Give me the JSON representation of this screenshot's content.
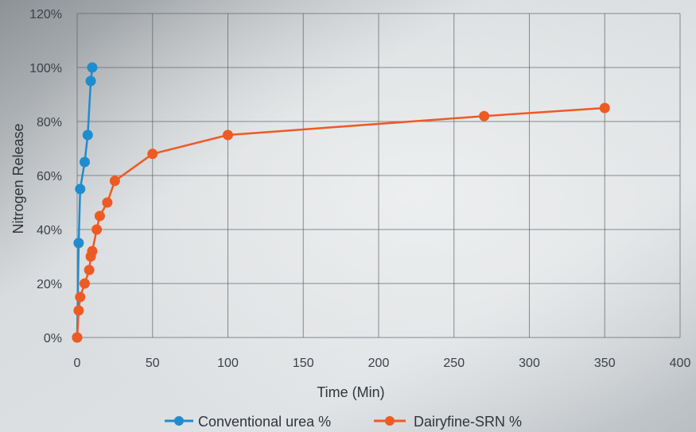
{
  "chart_data": {
    "type": "scatter",
    "title": "",
    "xlabel": "Time (Min)",
    "ylabel": "Nitrogen Release",
    "xlim": [
      0,
      400
    ],
    "ylim": [
      0,
      120
    ],
    "x_ticks": [
      "0",
      "50",
      "100",
      "150",
      "200",
      "250",
      "300",
      "350",
      "400"
    ],
    "y_ticks": [
      "0%",
      "20%",
      "40%",
      "60%",
      "80%",
      "100%",
      "120%"
    ],
    "grid": true,
    "legend_position": "bottom",
    "series": [
      {
        "name": "Conventional urea %",
        "color": "#1f8ccf",
        "points": [
          [
            0,
            0
          ],
          [
            1,
            35
          ],
          [
            2,
            55
          ],
          [
            5,
            65
          ],
          [
            7,
            75
          ],
          [
            9,
            95
          ],
          [
            10,
            100
          ]
        ]
      },
      {
        "name": "Dairyfine-SRN %",
        "color": "#ee5a24",
        "points": [
          [
            0,
            0
          ],
          [
            1,
            10
          ],
          [
            2,
            15
          ],
          [
            5,
            20
          ],
          [
            8,
            25
          ],
          [
            9,
            30
          ],
          [
            10,
            32
          ],
          [
            13,
            40
          ],
          [
            15,
            45
          ],
          [
            20,
            50
          ],
          [
            25,
            58
          ],
          [
            50,
            68
          ],
          [
            100,
            75
          ],
          [
            270,
            82
          ],
          [
            350,
            85
          ]
        ]
      }
    ]
  }
}
